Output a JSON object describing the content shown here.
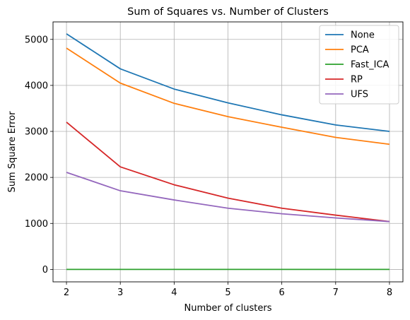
{
  "chart_data": {
    "type": "line",
    "title": "Sum of Squares vs. Number of Clusters",
    "xlabel": "Number of clusters",
    "ylabel": "Sum Square Error",
    "x": [
      2,
      3,
      4,
      5,
      6,
      7,
      8
    ],
    "xlim": [
      1.75,
      8.25
    ],
    "ylim": [
      -270,
      5380
    ],
    "xticks": [
      2,
      3,
      4,
      5,
      6,
      7,
      8
    ],
    "yticks": [
      0,
      1000,
      2000,
      3000,
      4000,
      5000
    ],
    "grid": true,
    "legend_position": "top-right",
    "series": [
      {
        "name": "None",
        "color": "#1f77b4",
        "values": [
          5120,
          4360,
          3920,
          3620,
          3360,
          3140,
          3000
        ]
      },
      {
        "name": "PCA",
        "color": "#ff7f0e",
        "values": [
          4810,
          4050,
          3610,
          3320,
          3090,
          2870,
          2720
        ]
      },
      {
        "name": "Fast_ICA",
        "color": "#2ca02c",
        "values": [
          0,
          0,
          0,
          0,
          0,
          0,
          0
        ]
      },
      {
        "name": "RP",
        "color": "#d62728",
        "values": [
          3200,
          2230,
          1840,
          1550,
          1330,
          1180,
          1040
        ]
      },
      {
        "name": "UFS",
        "color": "#9467bd",
        "values": [
          2110,
          1710,
          1510,
          1330,
          1210,
          1120,
          1040
        ]
      }
    ]
  }
}
